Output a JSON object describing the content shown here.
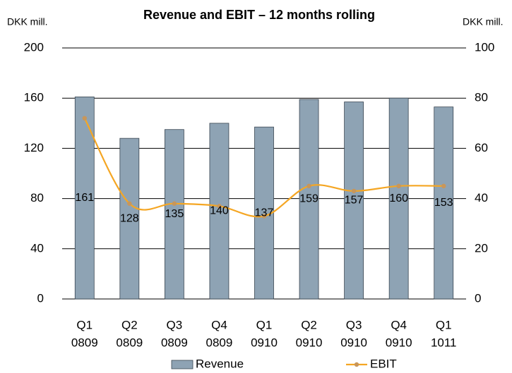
{
  "chart_data": {
    "type": "bar_line",
    "title": "Revenue and EBIT – 12 months rolling",
    "y_label": "DKK mill.",
    "y2_label": "DKK mill.",
    "categories": [
      [
        "Q1",
        "0809"
      ],
      [
        "Q2",
        "0809"
      ],
      [
        "Q3",
        "0809"
      ],
      [
        "Q4",
        "0809"
      ],
      [
        "Q1",
        "0910"
      ],
      [
        "Q2",
        "0910"
      ],
      [
        "Q3",
        "0910"
      ],
      [
        "Q4",
        "0910"
      ],
      [
        "Q1",
        "1011"
      ]
    ],
    "series": [
      {
        "name": "Revenue",
        "type": "bar",
        "color": "#8ea3b4",
        "values": [
          161,
          128,
          135,
          140,
          137,
          159,
          157,
          160,
          153
        ]
      },
      {
        "name": "EBIT",
        "type": "line",
        "axis": "y2",
        "color": "#f5a623",
        "marker_color": "#c8965a",
        "values": [
          72,
          38,
          38,
          37,
          33,
          45,
          43,
          45,
          45
        ]
      }
    ],
    "ylim": [
      0,
      200
    ],
    "yticks": [
      0,
      40,
      80,
      120,
      160,
      200
    ],
    "y2lim": [
      0,
      100
    ],
    "y2ticks": [
      0,
      20,
      40,
      60,
      80,
      100
    ],
    "grid": true,
    "legend": "bottom"
  }
}
